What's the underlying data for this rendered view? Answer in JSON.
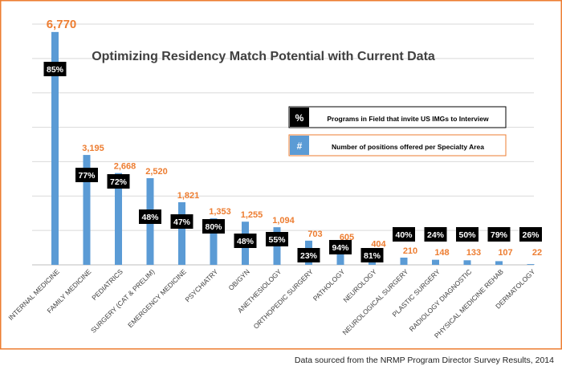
{
  "source_note": "Data sourced from the NRMP Program Director Survey Results, 2014",
  "colors": {
    "bar": "#5b9bd5",
    "value_label": "#ed7d31",
    "frame": "#ed7d31",
    "pct_box": "#000000",
    "pct_text": "#ffffff",
    "grid": "#d9d9d9"
  },
  "chart_data": {
    "type": "bar",
    "title": "Optimizing Residency Match Potential with Current Data",
    "xlabel": "",
    "ylabel": "",
    "ylim": [
      0,
      7000
    ],
    "grid": true,
    "legend_position": "top-right",
    "legend": [
      {
        "symbol": "%",
        "label": "Programs in Field that invite US IMGs to Interview"
      },
      {
        "symbol": "#",
        "label": "Number of positions offered per Specialty Area"
      }
    ],
    "categories": [
      "INTERNAL MEDICINE",
      "FAMILY MEDICINE",
      "PEDIATRICS",
      "SURGERY (CAT & PRELIM)",
      "EMERGENCY MEDICINE",
      "PSYCHIATRY",
      "OB/GYN",
      "ANETHESIOLOGY",
      "ORTHOPEDIC SURGERY",
      "PATHOLOGY",
      "NEUROLOGY",
      "NEUROLOGICAL SURGERY",
      "PLASTIC SURGERY",
      "RADIOLOGY DIAGNOSTIC",
      "PHYSICAL MEDICINE REHAB",
      "DERMATOLOGY"
    ],
    "series": [
      {
        "values": [
          6770,
          3195,
          2668,
          2520,
          1821,
          1353,
          1255,
          1094,
          703,
          605,
          404,
          210,
          148,
          133,
          107,
          22
        ],
        "value_labels": [
          "6,770",
          "3,195",
          "2,668",
          "2,520",
          "1,821",
          "1,353",
          "1,255",
          "1,094",
          "703",
          "605",
          "404",
          "210",
          "148",
          "133",
          "107",
          "22"
        ],
        "percent_labels": [
          "85%",
          "77%",
          "72%",
          "48%",
          "47%",
          "80%",
          "48%",
          "55%",
          "23%",
          "94%",
          "81%",
          "40%",
          "24%",
          "50%",
          "79%",
          "26%"
        ]
      }
    ]
  }
}
